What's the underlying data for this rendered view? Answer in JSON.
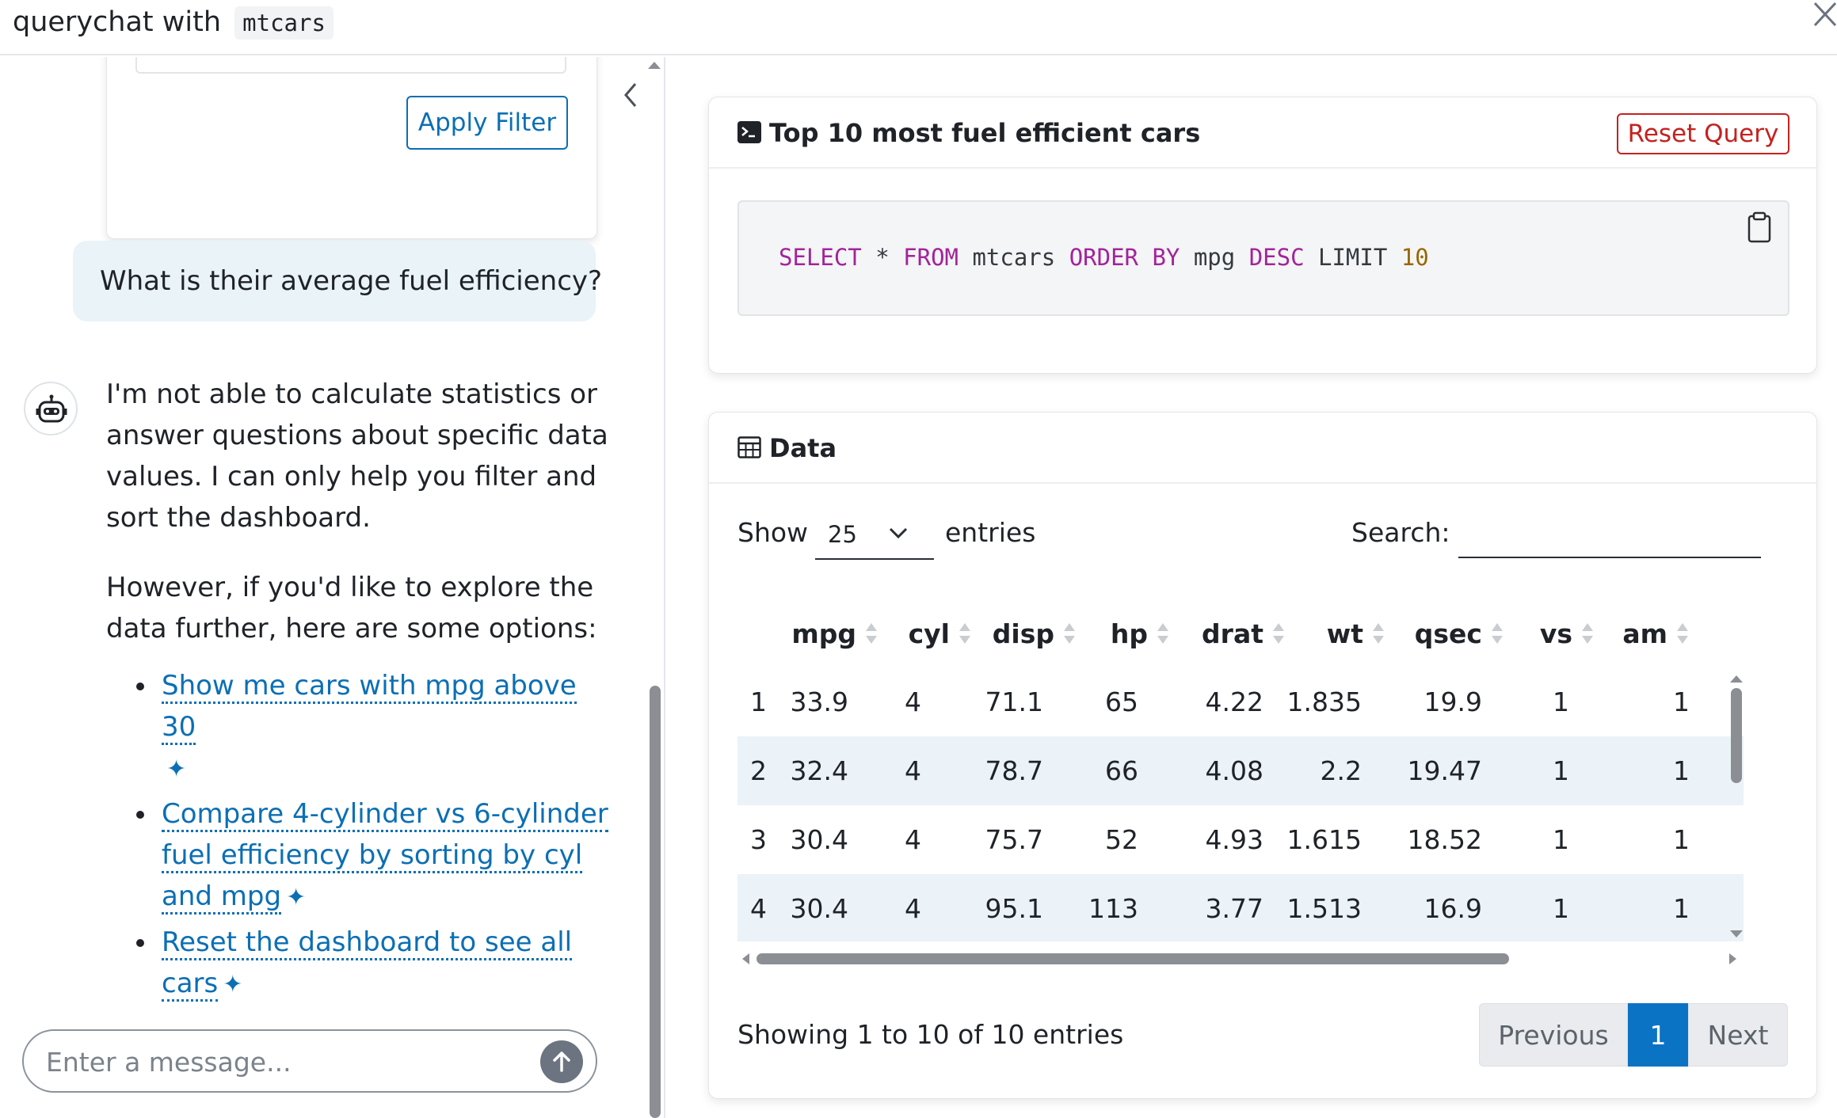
{
  "header": {
    "title_prefix": "querychat with",
    "dataset": "mtcars"
  },
  "sidebar": {
    "apply_filter_label": "Apply Filter",
    "user_message": "What is their average fuel efficiency?",
    "assistant_paragraph_1": "I'm not able to calculate statistics or answer questions about specific data values. I can only help you filter and sort the dashboard.",
    "assistant_paragraph_2": "However, if you'd like to explore the data further, here are some options:",
    "suggestions": [
      {
        "label": "Show me cars with mpg above 30"
      },
      {
        "label": "Compare 4-cylinder vs 6-cylinder fuel efficiency by sorting by cyl and mpg"
      },
      {
        "label": "Reset the dashboard to see all cars"
      }
    ],
    "sparkle_glyph": "✦",
    "chat_placeholder": "Enter a message..."
  },
  "sql_card": {
    "title": "Top 10 most fuel efficient cars",
    "reset_label": "Reset Query",
    "sql_tokens": {
      "t1": "SELECT",
      "t2": " * ",
      "t3": "FROM",
      "t4": " mtcars ",
      "t5": "ORDER BY",
      "t6": " mpg ",
      "t7": "DESC",
      "t8": " ",
      "t9": "LIMIT",
      "t10": " ",
      "t11": "10"
    }
  },
  "data_card": {
    "title": "Data",
    "show_label": "Show",
    "page_length": "25",
    "entries_label": "entries",
    "search_label": "Search:",
    "columns": [
      "mpg",
      "cyl",
      "disp",
      "hp",
      "drat",
      "wt",
      "qsec",
      "vs",
      "am"
    ],
    "rows": [
      [
        "1",
        "33.9",
        "4",
        "71.1",
        "65",
        "4.22",
        "1.835",
        "19.9",
        "1",
        "1"
      ],
      [
        "2",
        "32.4",
        "4",
        "78.7",
        "66",
        "4.08",
        "2.2",
        "19.47",
        "1",
        "1"
      ],
      [
        "3",
        "30.4",
        "4",
        "75.7",
        "52",
        "4.93",
        "1.615",
        "18.52",
        "1",
        "1"
      ],
      [
        "4",
        "30.4",
        "4",
        "95.1",
        "113",
        "3.77",
        "1.513",
        "16.9",
        "1",
        "1"
      ]
    ],
    "info": "Showing 1 to 10 of 10 entries",
    "pager": {
      "previous": "Previous",
      "current": "1",
      "next": "Next"
    }
  },
  "colors": {
    "accent": "#0b6fb5",
    "reset": "#c5221f",
    "keyword": "#a2249b",
    "number": "#9a6700",
    "row_stripe": "#ebf2f8",
    "user_bubble": "#e9f3f8"
  }
}
